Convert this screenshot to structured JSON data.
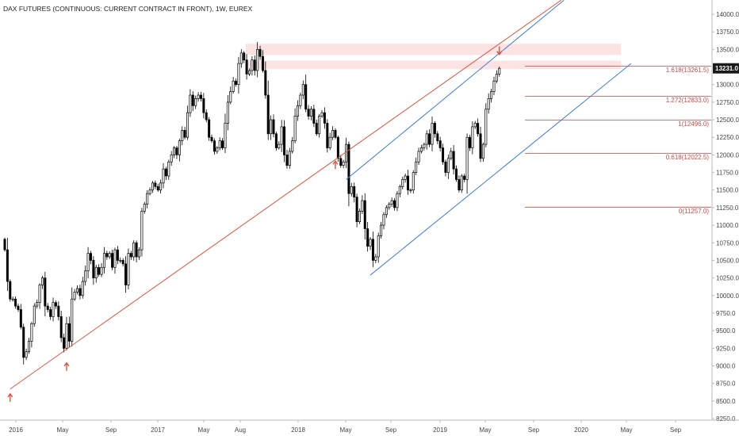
{
  "chart_data": {
    "type": "candlestick",
    "title": "DAX FUTURES (CONTINUOUS: CURRENT CONTRACT IN FRONT), 1W, EUREX",
    "ylim": [
      8250,
      14250
    ],
    "y_ticks": [
      "14000.0",
      "13750.0",
      "13500.0",
      "13250.0",
      "13000.0",
      "12750.0",
      "12500.0",
      "12250.0",
      "12000.0",
      "11750.0",
      "11500.0",
      "11250.0",
      "11000.0",
      "10750.0",
      "10500.0",
      "10250.0",
      "10000.0",
      "9750.0",
      "9500.0",
      "9250.0",
      "9000.0",
      "8750.0",
      "8500.0",
      "8250.0"
    ],
    "x_ticks": [
      "2016",
      "May",
      "Sep",
      "2017",
      "May",
      "Aug",
      "2018",
      "May",
      "Sep",
      "2019",
      "May",
      "Sep",
      "2020",
      "May",
      "Sep"
    ],
    "last_price": "13231.0",
    "fib_levels": [
      {
        "label": "1.618(13261.5)",
        "value": 13261.5
      },
      {
        "label": "1.272(12833.0)",
        "value": 12833.0
      },
      {
        "label": "1(12496.0)",
        "value": 12496.0
      },
      {
        "label": "0.618(12022.5)",
        "value": 12022.5
      },
      {
        "label": "0(11257.0)",
        "value": 11257.0
      }
    ],
    "resistance_zones": [
      [
        13420,
        13580
      ],
      [
        13220,
        13340
      ]
    ],
    "arrows": [
      {
        "direction": "up",
        "week": 2,
        "value": 8590
      },
      {
        "direction": "up",
        "week": 23,
        "value": 9030
      },
      {
        "direction": "up",
        "week": 123,
        "value": 11900
      },
      {
        "direction": "down",
        "week": 184,
        "value": 13440
      }
    ],
    "trendlines": [
      {
        "color": "red",
        "from": {
          "week": 2,
          "value": 8670
        },
        "to": {
          "week": 207,
          "value": 14200
        }
      },
      {
        "color": "blue",
        "from": {
          "week": 127,
          "value": 11650
        },
        "to": {
          "week": 208,
          "value": 14200
        }
      },
      {
        "color": "blue",
        "from": {
          "week": 136,
          "value": 10290
        },
        "to": {
          "week": 233,
          "value": 13300
        }
      }
    ],
    "candles_closes": [
      10650,
      10200,
      9950,
      9950,
      9850,
      9800,
      9550,
      9120,
      9200,
      9350,
      9600,
      9850,
      9900,
      10150,
      10250,
      9850,
      9800,
      9700,
      9900,
      9850,
      9700,
      9400,
      9250,
      9600,
      9350,
      9950,
      10050,
      10100,
      10000,
      10200,
      10350,
      10600,
      10500,
      10250,
      10400,
      10300,
      10400,
      10600,
      10550,
      10600,
      10400,
      10650,
      10500,
      10500,
      10450,
      10150,
      10600,
      10550,
      10750,
      10550,
      10650,
      11200,
      11300,
      11450,
      11500,
      11600,
      11550,
      11500,
      11600,
      11800,
      11700,
      11900,
      12000,
      12100,
      12000,
      12200,
      12350,
      12250,
      12600,
      12850,
      12700,
      12800,
      12850,
      12800,
      12600,
      12500,
      12250,
      12200,
      12050,
      12100,
      12200,
      12100,
      12450,
      12750,
      12900,
      13050,
      13000,
      13300,
      13450,
      13350,
      13150,
      13200,
      13350,
      13200,
      13500,
      13400,
      13200,
      12850,
      12300,
      12500,
      12300,
      12100,
      12150,
      12400,
      12000,
      11850,
      12050,
      12200,
      12550,
      12700,
      12850,
      13000,
      12650,
      12550,
      12650,
      12450,
      12300,
      12550,
      12600,
      12450,
      12100,
      12250,
      12350,
      12250,
      11950,
      11850,
      11900,
      12150,
      11450,
      11550,
      11400,
      11050,
      11200,
      11350,
      10950,
      10700,
      10800,
      10500,
      10550,
      10850,
      11000,
      11150,
      11250,
      11300,
      11350,
      11250,
      11450,
      11550,
      11650,
      11700,
      11500,
      11500,
      11750,
      11900,
      12050,
      12100,
      12150,
      12300,
      12150,
      12450,
      12300,
      12200,
      12100,
      11900,
      11750,
      11950,
      12050,
      11800,
      11650,
      11500,
      11700,
      11650,
      12250,
      12100,
      12400,
      12450,
      12300,
      11950,
      12150,
      12650,
      12800,
      12900,
      13050,
      13150,
      13231
    ]
  }
}
